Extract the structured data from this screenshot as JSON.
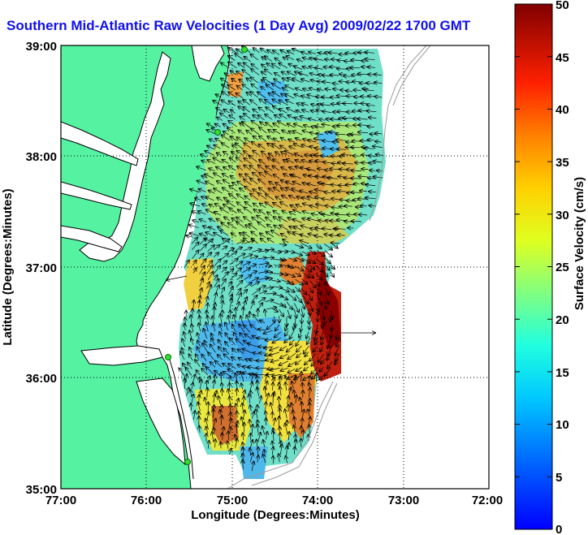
{
  "title": "Southern Mid-Atlantic Raw Velocities (1 Day Avg) 2009/02/22 1700 GMT",
  "map": {
    "x_axis_label": "Longitude (Degrees:Minutes)",
    "y_axis_label": "Latitude (Degrees:Minutes)",
    "x_ticks": [
      "77:00",
      "76:00",
      "75:00",
      "74:00",
      "73:00",
      "72:00"
    ],
    "y_ticks": [
      "39:00",
      "38:00",
      "37:00",
      "36:00",
      "35:00"
    ],
    "x_range_deg_west": [
      77,
      72
    ],
    "y_range_deg_north": [
      35,
      39
    ],
    "land_color": "#55f2a2",
    "grid": "dotted"
  },
  "colorbar": {
    "label": "Surface Velocity (cm/s)",
    "ticks": [
      "0",
      "5",
      "10",
      "15",
      "20",
      "25",
      "30",
      "35",
      "40",
      "45",
      "50"
    ],
    "range_cm_s": [
      0,
      50
    ],
    "colormap": "jet"
  },
  "stations": [
    {
      "name": "station-1",
      "lon": -74.92,
      "lat": 38.99
    },
    {
      "name": "station-2",
      "lon": -75.1,
      "lat": 38.25
    },
    {
      "name": "station-3",
      "lon": -75.7,
      "lat": 36.19
    },
    {
      "name": "station-4",
      "lon": -75.48,
      "lat": 35.25
    }
  ]
}
